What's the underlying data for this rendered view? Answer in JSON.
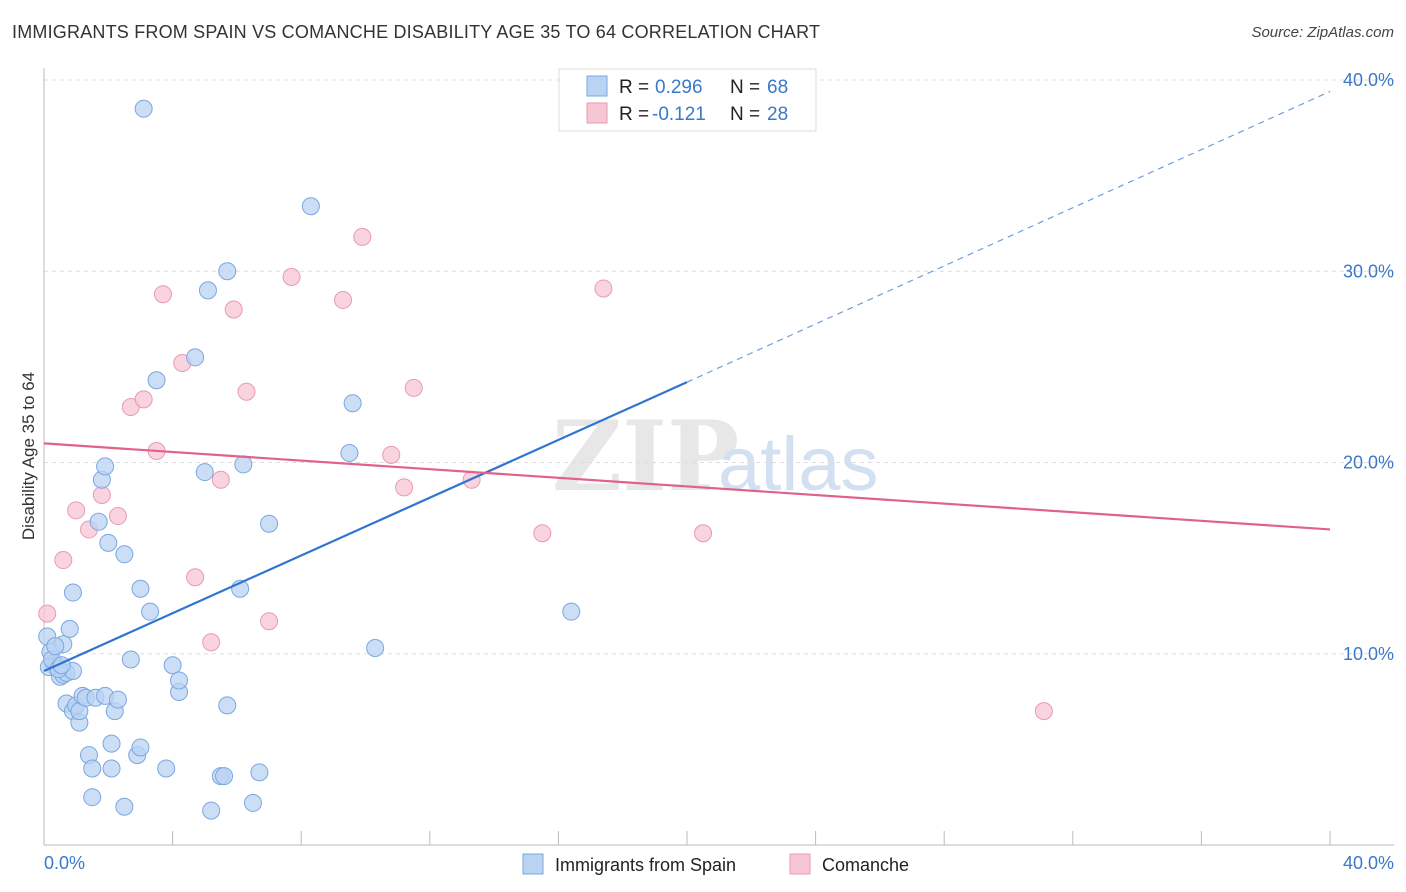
{
  "header": {
    "title": "IMMIGRANTS FROM SPAIN VS COMANCHE DISABILITY AGE 35 TO 64 CORRELATION CHART",
    "source": "Source: ZipAtlas.com"
  },
  "watermark": {
    "zip": "ZIP",
    "atlas": "atlas"
  },
  "legend_top": {
    "rows": [
      {
        "r_label": "R =",
        "r_value": "0.296",
        "n_label": "N =",
        "n_value": "68"
      },
      {
        "r_label": "R =",
        "r_value": "-0.121",
        "n_label": "N =",
        "n_value": "28"
      }
    ]
  },
  "legend_bottom": {
    "items": [
      {
        "label": "Immigrants from Spain"
      },
      {
        "label": "Comanche"
      }
    ]
  },
  "colors": {
    "blue_fill": "#b9d3f3",
    "blue_stroke": "#7aa7e0",
    "blue_line": "#2f74d0",
    "pink_fill": "#f7c6d4",
    "pink_stroke": "#e99ab2",
    "pink_line": "#e0628a",
    "tick_text": "#3b78c9",
    "grid": "#dddddd"
  },
  "chart_data": {
    "type": "scatter",
    "title": "IMMIGRANTS FROM SPAIN VS COMANCHE DISABILITY AGE 35 TO 64 CORRELATION CHART",
    "xlabel": "",
    "ylabel": "Disability Age 35 to 64",
    "xlim": [
      0,
      40
    ],
    "ylim": [
      0,
      40
    ],
    "x_tick_labels": [
      "0.0%",
      "40.0%"
    ],
    "y_tick_labels": [
      "10.0%",
      "20.0%",
      "30.0%",
      "40.0%"
    ],
    "y_ticks": [
      10,
      20,
      30,
      40
    ],
    "grid": "horizontal dashed",
    "series": [
      {
        "name": "Immigrants from Spain",
        "trend": {
          "x": [
            0,
            20
          ],
          "y": [
            9.1,
            24.2
          ],
          "dashed_to": {
            "x": 40,
            "y": 39.4
          }
        },
        "points": [
          [
            0.1,
            10.9
          ],
          [
            0.2,
            10.1
          ],
          [
            0.3,
            9.5
          ],
          [
            0.35,
            9.3
          ],
          [
            0.4,
            9.4
          ],
          [
            0.5,
            8.8
          ],
          [
            0.6,
            10.5
          ],
          [
            0.6,
            8.9
          ],
          [
            0.7,
            9.0
          ],
          [
            0.7,
            7.4
          ],
          [
            0.8,
            11.3
          ],
          [
            0.9,
            13.2
          ],
          [
            0.9,
            9.1
          ],
          [
            0.9,
            7.0
          ],
          [
            1.0,
            7.3
          ],
          [
            1.1,
            6.4
          ],
          [
            1.1,
            7.0
          ],
          [
            1.2,
            7.8
          ],
          [
            1.3,
            7.7
          ],
          [
            1.4,
            4.7
          ],
          [
            1.5,
            4.0
          ],
          [
            1.5,
            2.5
          ],
          [
            1.6,
            7.7
          ],
          [
            1.7,
            16.9
          ],
          [
            1.8,
            19.1
          ],
          [
            1.9,
            19.8
          ],
          [
            1.9,
            7.8
          ],
          [
            2.0,
            15.8
          ],
          [
            2.1,
            5.3
          ],
          [
            2.1,
            4.0
          ],
          [
            2.2,
            7.0
          ],
          [
            2.3,
            7.6
          ],
          [
            2.5,
            15.2
          ],
          [
            2.5,
            2.0
          ],
          [
            2.7,
            9.7
          ],
          [
            2.9,
            4.7
          ],
          [
            3.0,
            5.1
          ],
          [
            3.0,
            13.4
          ],
          [
            3.1,
            38.5
          ],
          [
            3.3,
            12.2
          ],
          [
            3.5,
            24.3
          ],
          [
            3.8,
            4.0
          ],
          [
            4.0,
            9.4
          ],
          [
            4.2,
            8.0
          ],
          [
            4.2,
            8.6
          ],
          [
            4.7,
            25.5
          ],
          [
            5.0,
            19.5
          ],
          [
            5.1,
            29.0
          ],
          [
            5.2,
            1.8
          ],
          [
            5.5,
            3.6
          ],
          [
            5.6,
            3.6
          ],
          [
            5.7,
            30.0
          ],
          [
            5.7,
            7.3
          ],
          [
            6.1,
            13.4
          ],
          [
            6.2,
            19.9
          ],
          [
            6.5,
            2.2
          ],
          [
            6.7,
            3.8
          ],
          [
            7.0,
            16.8
          ],
          [
            8.3,
            33.4
          ],
          [
            9.5,
            20.5
          ],
          [
            9.6,
            23.1
          ],
          [
            10.3,
            10.3
          ],
          [
            16.4,
            12.2
          ],
          [
            0.15,
            9.3
          ],
          [
            0.25,
            9.7
          ],
          [
            0.45,
            9.2
          ],
          [
            0.55,
            9.4
          ],
          [
            0.35,
            10.4
          ]
        ]
      },
      {
        "name": "Comanche",
        "trend": {
          "x": [
            0,
            40
          ],
          "y": [
            21.0,
            16.5
          ]
        },
        "points": [
          [
            0.1,
            12.1
          ],
          [
            0.6,
            14.9
          ],
          [
            1.0,
            17.5
          ],
          [
            1.4,
            16.5
          ],
          [
            1.8,
            18.3
          ],
          [
            2.3,
            17.2
          ],
          [
            2.7,
            22.9
          ],
          [
            3.1,
            23.3
          ],
          [
            3.5,
            20.6
          ],
          [
            3.7,
            28.8
          ],
          [
            4.3,
            25.2
          ],
          [
            4.7,
            14.0
          ],
          [
            5.2,
            10.6
          ],
          [
            5.5,
            19.1
          ],
          [
            5.9,
            28.0
          ],
          [
            6.3,
            23.7
          ],
          [
            7.0,
            11.7
          ],
          [
            7.7,
            29.7
          ],
          [
            9.3,
            28.5
          ],
          [
            9.9,
            31.8
          ],
          [
            10.8,
            20.4
          ],
          [
            11.2,
            18.7
          ],
          [
            11.5,
            23.9
          ],
          [
            13.3,
            19.1
          ],
          [
            15.5,
            16.3
          ],
          [
            17.4,
            29.1
          ],
          [
            20.5,
            16.3
          ],
          [
            31.1,
            7.0
          ]
        ]
      }
    ]
  }
}
